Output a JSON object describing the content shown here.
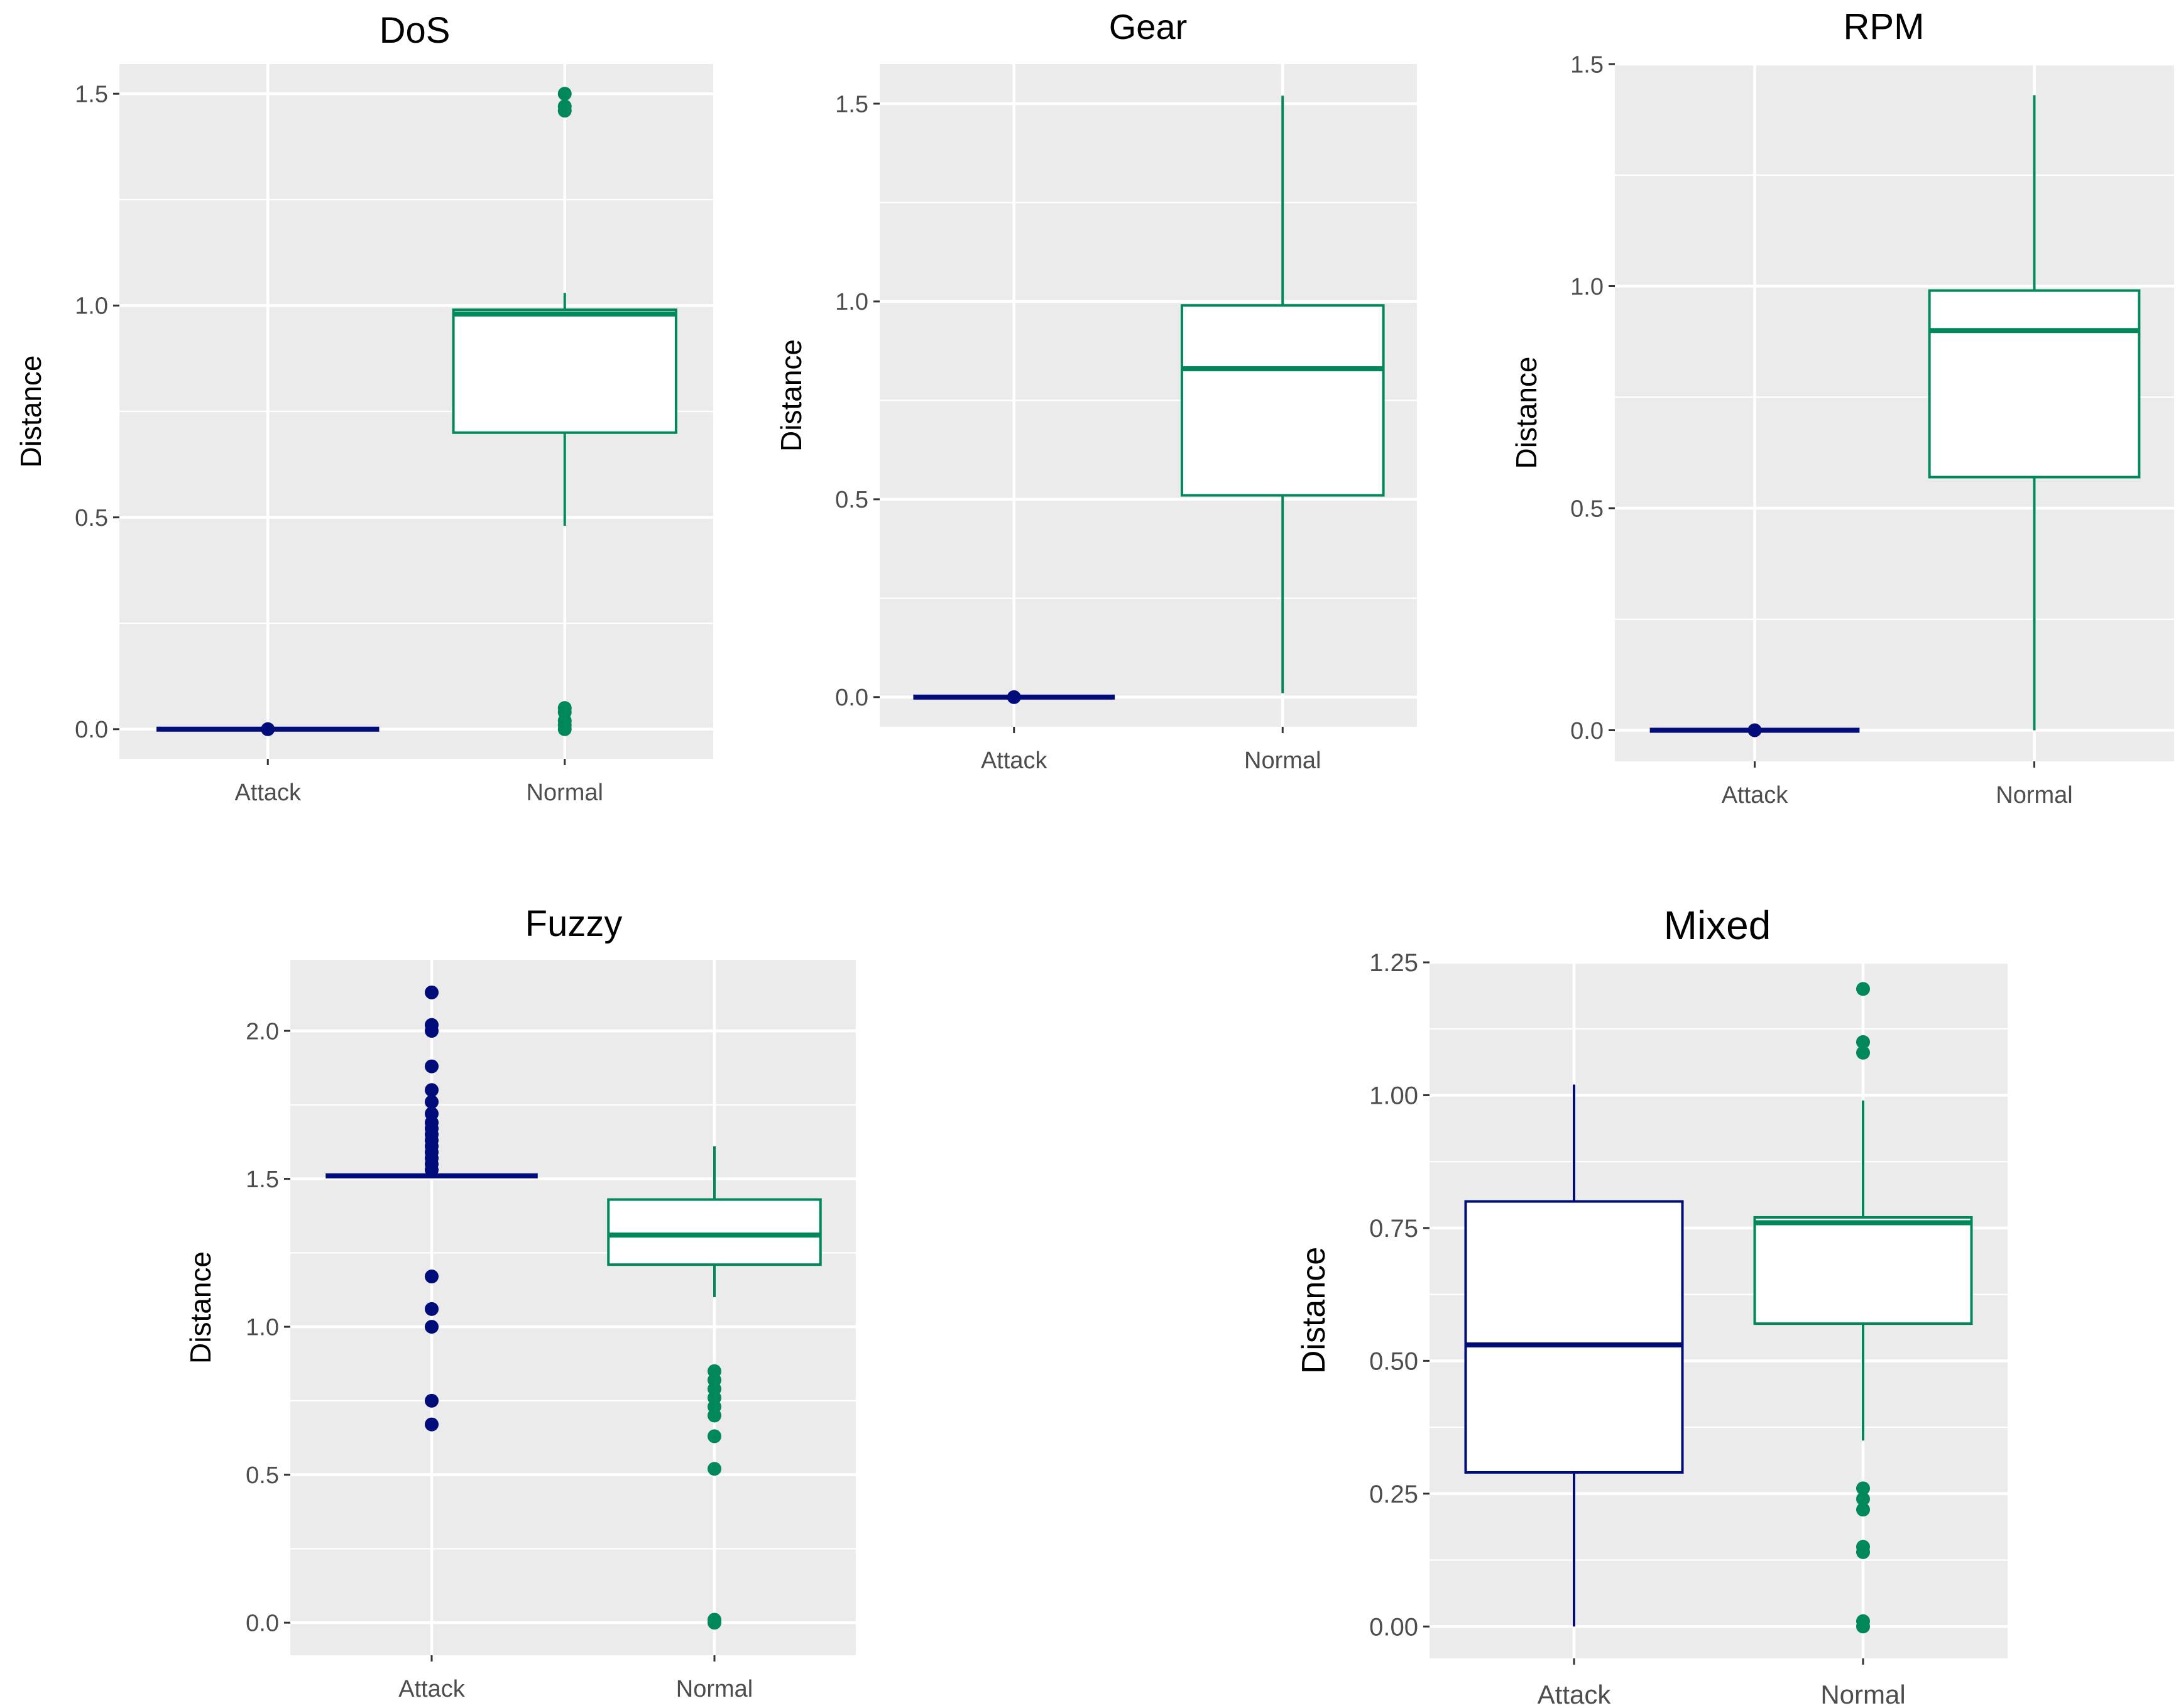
{
  "figure": {
    "colors": {
      "attack": "#000c7a",
      "normal": "#00875a",
      "panel_bg": "#ebebeb",
      "grid": "#ffffff"
    }
  },
  "chart_data": [
    {
      "type": "boxplot",
      "title": "DoS",
      "xlabel": "",
      "ylabel": "Distance",
      "categories": [
        "Attack",
        "Normal"
      ],
      "ylim": [
        -0.07,
        1.57
      ],
      "yticks": [
        0.0,
        0.5,
        1.0,
        1.5
      ],
      "ytick_labels": [
        "0.0",
        "0.5",
        "1.0",
        "1.5"
      ],
      "boxes": [
        {
          "category": "Attack",
          "min": 0.0,
          "q1": 0.0,
          "median": 0.0,
          "q3": 0.0,
          "max": 0.0,
          "outliers": [
            0.0
          ]
        },
        {
          "category": "Normal",
          "min": 0.48,
          "q1": 0.7,
          "median": 0.98,
          "q3": 0.99,
          "max": 1.03,
          "outliers": [
            0.0,
            0.01,
            0.02,
            0.04,
            0.05,
            1.46,
            1.47,
            1.5
          ]
        }
      ]
    },
    {
      "type": "boxplot",
      "title": "Gear",
      "xlabel": "",
      "ylabel": "Distance",
      "categories": [
        "Attack",
        "Normal"
      ],
      "ylim": [
        -0.075,
        1.6
      ],
      "yticks": [
        0.0,
        0.5,
        1.0,
        1.5
      ],
      "ytick_labels": [
        "0.0",
        "0.5",
        "1.0",
        "1.5"
      ],
      "boxes": [
        {
          "category": "Attack",
          "min": 0.0,
          "q1": 0.0,
          "median": 0.0,
          "q3": 0.0,
          "max": 0.0,
          "outliers": [
            0.0
          ]
        },
        {
          "category": "Normal",
          "min": 0.01,
          "q1": 0.51,
          "median": 0.83,
          "q3": 0.99,
          "max": 1.52,
          "outliers": []
        }
      ]
    },
    {
      "type": "boxplot",
      "title": "RPM",
      "xlabel": "",
      "ylabel": "Distance",
      "categories": [
        "Attack",
        "Normal"
      ],
      "ylim": [
        -0.07,
        1.5
      ],
      "yticks": [
        0.0,
        0.5,
        1.0,
        1.5
      ],
      "ytick_labels": [
        "0.0",
        "0.5",
        "1.0",
        "1.5"
      ],
      "boxes": [
        {
          "category": "Attack",
          "min": 0.0,
          "q1": 0.0,
          "median": 0.0,
          "q3": 0.0,
          "max": 0.0,
          "outliers": [
            0.0
          ]
        },
        {
          "category": "Normal",
          "min": 0.0,
          "q1": 0.57,
          "median": 0.9,
          "q3": 0.99,
          "max": 1.43,
          "outliers": []
        }
      ]
    },
    {
      "type": "boxplot",
      "title": "Fuzzy",
      "xlabel": "",
      "ylabel": "Distance",
      "categories": [
        "Attack",
        "Normal"
      ],
      "ylim": [
        -0.11,
        2.24
      ],
      "yticks": [
        0.0,
        0.5,
        1.0,
        1.5,
        2.0
      ],
      "ytick_labels": [
        "0.0",
        "0.5",
        "1.0",
        "1.5",
        "2.0"
      ],
      "boxes": [
        {
          "category": "Attack",
          "min": 1.51,
          "q1": 1.51,
          "median": 1.51,
          "q3": 1.51,
          "max": 1.51,
          "outliers": [
            0.67,
            0.75,
            1.0,
            1.06,
            1.17,
            1.53,
            1.55,
            1.57,
            1.59,
            1.61,
            1.63,
            1.65,
            1.67,
            1.69,
            1.72,
            1.76,
            1.8,
            1.88,
            2.0,
            2.02,
            2.13
          ]
        },
        {
          "category": "Normal",
          "min": 1.1,
          "q1": 1.21,
          "median": 1.31,
          "q3": 1.43,
          "max": 1.61,
          "outliers": [
            0.0,
            0.01,
            0.52,
            0.63,
            0.7,
            0.73,
            0.76,
            0.79,
            0.82,
            0.85
          ]
        }
      ]
    },
    {
      "type": "boxplot",
      "title": "Mixed",
      "xlabel": "",
      "ylabel": "Distance",
      "categories": [
        "Attack",
        "Normal"
      ],
      "ylim": [
        -0.06,
        1.25
      ],
      "yticks": [
        0.0,
        0.25,
        0.5,
        0.75,
        1.0,
        1.25
      ],
      "ytick_labels": [
        "0.00",
        "0.25",
        "0.50",
        "0.75",
        "1.00",
        "1.25"
      ],
      "boxes": [
        {
          "category": "Attack",
          "min": 0.0,
          "q1": 0.29,
          "median": 0.53,
          "q3": 0.8,
          "max": 1.02,
          "outliers": []
        },
        {
          "category": "Normal",
          "min": 0.35,
          "q1": 0.57,
          "median": 0.76,
          "q3": 0.77,
          "max": 0.99,
          "outliers": [
            0.0,
            0.01,
            0.14,
            0.15,
            0.22,
            0.24,
            0.26,
            1.08,
            1.1,
            1.2
          ]
        }
      ]
    }
  ]
}
